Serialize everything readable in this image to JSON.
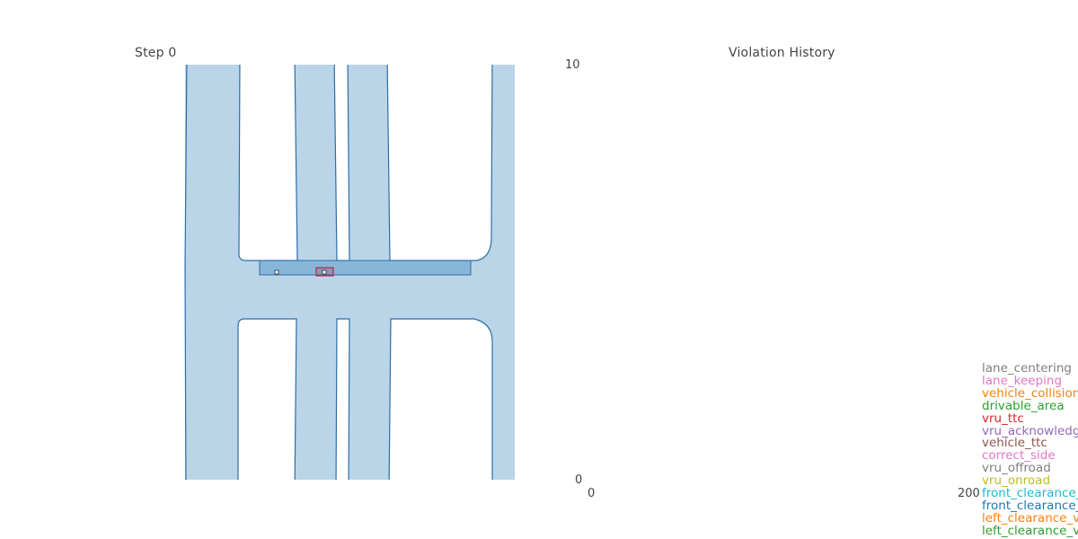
{
  "map_panel": {
    "title": "Step 0",
    "colors": {
      "road_fill": "#bad5e8",
      "road_edge": "#2c6ea8",
      "crosswalk_fill": "#86b6d8",
      "ego_box": "#b02a4a"
    }
  },
  "chart_data": {
    "type": "line",
    "title": "Violation History",
    "xlabel": "",
    "ylabel": "",
    "x_ticks": [
      "0",
      "200"
    ],
    "y_ticks": [
      "10",
      "0"
    ],
    "xlim": [
      0,
      200
    ],
    "ylim": [
      0,
      10
    ],
    "grid": false,
    "legend_position": "bottom-right",
    "series": [
      {
        "name": "lane_centering",
        "color": "#7f7f7f",
        "values": []
      },
      {
        "name": "lane_keeping",
        "color": "#e377c2",
        "values": []
      },
      {
        "name": "vehicle_collision",
        "color": "#ff7f0e",
        "values": []
      },
      {
        "name": "drivable_area",
        "color": "#2ca02c",
        "values": []
      },
      {
        "name": "vru_ttc",
        "color": "#d62728",
        "values": []
      },
      {
        "name": "vru_acknowledgment",
        "color": "#9467bd",
        "values": []
      },
      {
        "name": "vehicle_ttc",
        "color": "#8c564b",
        "values": []
      },
      {
        "name": "correct_side",
        "color": "#e377c2",
        "values": []
      },
      {
        "name": "vru_offroad",
        "color": "#7f7f7f",
        "values": []
      },
      {
        "name": "vru_onroad",
        "color": "#bcbd22",
        "values": []
      },
      {
        "name": "front_clearance_vehicle",
        "color": "#17becf",
        "values": []
      },
      {
        "name": "front_clearance_vru",
        "color": "#1f77b4",
        "values": []
      },
      {
        "name": "left_clearance_vehicle",
        "color": "#ff7f0e",
        "values": []
      },
      {
        "name": "left_clearance_vru",
        "color": "#2ca02c",
        "values": []
      }
    ]
  }
}
